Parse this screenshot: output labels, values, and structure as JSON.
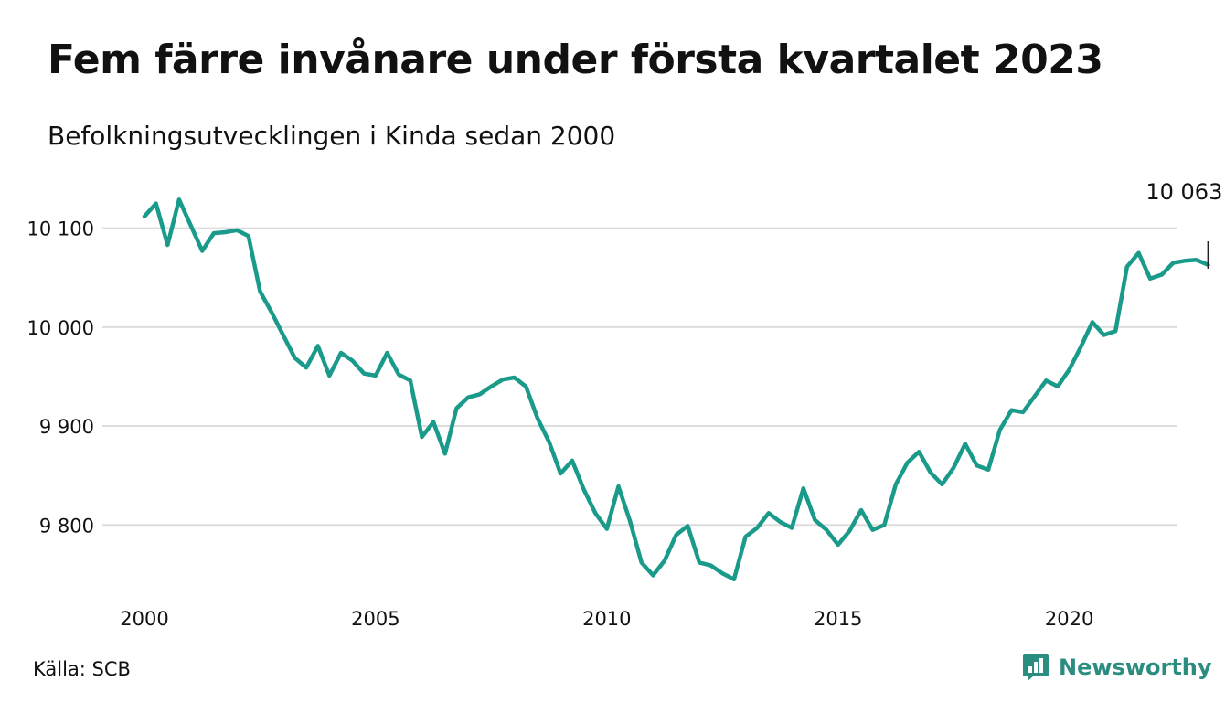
{
  "title": "Fem färre invånare under första kvartalet 2023",
  "subtitle": "Befolkningsutvecklingen i Kinda sedan 2000",
  "source": "Källa: SCB",
  "brand": "Newsworthy",
  "colors": {
    "line": "#1a9a8a",
    "grid": "#dddddd",
    "brand": "#2b8c80"
  },
  "chart_data": {
    "type": "line",
    "title": "Fem färre invånare under första kvartalet 2023",
    "subtitle": "Befolkningsutvecklingen i Kinda sedan 2000",
    "xlabel": "",
    "ylabel": "",
    "xlim": [
      2000,
      2023.25
    ],
    "ylim": [
      9730,
      10120
    ],
    "grid": true,
    "yticks": [
      {
        "value": 9800,
        "label": "9 800"
      },
      {
        "value": 9900,
        "label": "9 900"
      },
      {
        "value": 10000,
        "label": "10 000"
      },
      {
        "value": 10100,
        "label": "10 100"
      }
    ],
    "xticks": [
      {
        "value": 2000,
        "label": "2000"
      },
      {
        "value": 2005,
        "label": "2005"
      },
      {
        "value": 2010,
        "label": "2010"
      },
      {
        "value": 2015,
        "label": "2015"
      },
      {
        "value": 2020,
        "label": "2020"
      }
    ],
    "annotation": {
      "x": 2023.0,
      "value": 10063,
      "label": "10 063"
    },
    "series": [
      {
        "values": [
          [
            2000.0,
            10112
          ],
          [
            2000.25,
            10125
          ],
          [
            2000.5,
            10083
          ],
          [
            2000.75,
            10129
          ],
          [
            2001.0,
            10103
          ],
          [
            2001.25,
            10077
          ],
          [
            2001.5,
            10095
          ],
          [
            2001.75,
            10096
          ],
          [
            2002.0,
            10098
          ],
          [
            2002.25,
            10092
          ],
          [
            2002.5,
            10036
          ],
          [
            2002.75,
            10015
          ],
          [
            2003.0,
            9992
          ],
          [
            2003.25,
            9969
          ],
          [
            2003.5,
            9959
          ],
          [
            2003.75,
            9981
          ],
          [
            2004.0,
            9951
          ],
          [
            2004.25,
            9974
          ],
          [
            2004.5,
            9966
          ],
          [
            2004.75,
            9953
          ],
          [
            2005.0,
            9951
          ],
          [
            2005.25,
            9974
          ],
          [
            2005.5,
            9952
          ],
          [
            2005.75,
            9946
          ],
          [
            2006.0,
            9889
          ],
          [
            2006.25,
            9904
          ],
          [
            2006.5,
            9872
          ],
          [
            2006.75,
            9918
          ],
          [
            2007.0,
            9929
          ],
          [
            2007.25,
            9932
          ],
          [
            2007.5,
            9940
          ],
          [
            2007.75,
            9947
          ],
          [
            2008.0,
            9949
          ],
          [
            2008.25,
            9940
          ],
          [
            2008.5,
            9908
          ],
          [
            2008.75,
            9884
          ],
          [
            2009.0,
            9852
          ],
          [
            2009.25,
            9865
          ],
          [
            2009.5,
            9836
          ],
          [
            2009.75,
            9812
          ],
          [
            2010.0,
            9796
          ],
          [
            2010.25,
            9839
          ],
          [
            2010.5,
            9804
          ],
          [
            2010.75,
            9762
          ],
          [
            2011.0,
            9749
          ],
          [
            2011.25,
            9764
          ],
          [
            2011.5,
            9790
          ],
          [
            2011.75,
            9799
          ],
          [
            2012.0,
            9762
          ],
          [
            2012.25,
            9759
          ],
          [
            2012.5,
            9751
          ],
          [
            2012.75,
            9745
          ],
          [
            2013.0,
            9788
          ],
          [
            2013.25,
            9797
          ],
          [
            2013.5,
            9812
          ],
          [
            2013.75,
            9803
          ],
          [
            2014.0,
            9797
          ],
          [
            2014.25,
            9837
          ],
          [
            2014.5,
            9805
          ],
          [
            2014.75,
            9795
          ],
          [
            2015.0,
            9780
          ],
          [
            2015.25,
            9794
          ],
          [
            2015.5,
            9815
          ],
          [
            2015.75,
            9795
          ],
          [
            2016.0,
            9800
          ],
          [
            2016.25,
            9841
          ],
          [
            2016.5,
            9863
          ],
          [
            2016.75,
            9874
          ],
          [
            2017.0,
            9853
          ],
          [
            2017.25,
            9841
          ],
          [
            2017.5,
            9858
          ],
          [
            2017.75,
            9882
          ],
          [
            2018.0,
            9860
          ],
          [
            2018.25,
            9856
          ],
          [
            2018.5,
            9896
          ],
          [
            2018.75,
            9916
          ],
          [
            2019.0,
            9914
          ],
          [
            2019.25,
            9930
          ],
          [
            2019.5,
            9946
          ],
          [
            2019.75,
            9940
          ],
          [
            2020.0,
            9957
          ],
          [
            2020.25,
            9980
          ],
          [
            2020.5,
            10005
          ],
          [
            2020.75,
            9992
          ],
          [
            2021.0,
            9996
          ],
          [
            2021.25,
            10061
          ],
          [
            2021.5,
            10075
          ],
          [
            2021.75,
            10049
          ],
          [
            2022.0,
            10053
          ],
          [
            2022.25,
            10065
          ],
          [
            2022.5,
            10067
          ],
          [
            2022.75,
            10068
          ],
          [
            2023.0,
            10063
          ]
        ]
      }
    ]
  }
}
